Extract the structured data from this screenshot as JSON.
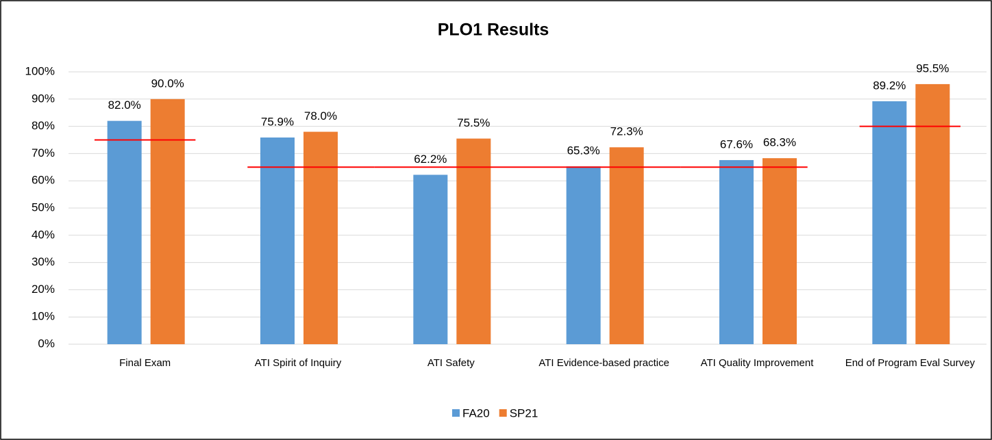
{
  "chart_data": {
    "type": "bar",
    "title": "PLO1 Results",
    "categories": [
      "Final Exam",
      "ATI Spirit of Inquiry",
      "ATI Safety",
      "ATI Evidence-based practice",
      "ATI Quality Improvement",
      "End of Program Eval Survey"
    ],
    "series": [
      {
        "name": "FA20",
        "color": "#5b9bd5",
        "values": [
          82.0,
          75.9,
          62.2,
          65.3,
          67.6,
          89.2
        ],
        "value_labels": [
          "82.0%",
          "75.9%",
          "62.2%",
          "65.3%",
          "67.6%",
          "89.2%"
        ]
      },
      {
        "name": "SP21",
        "color": "#ed7d31",
        "values": [
          90.0,
          78.0,
          75.5,
          72.3,
          68.3,
          95.5
        ],
        "value_labels": [
          "90.0%",
          "78.0%",
          "75.5%",
          "72.3%",
          "68.3%",
          "95.5%"
        ]
      }
    ],
    "targets": [
      75,
      65,
      65,
      65,
      65,
      80
    ],
    "target_color": "#ff0000",
    "ylim": [
      0,
      100
    ],
    "yticks": [
      {
        "value": 0,
        "label": "0%"
      },
      {
        "value": 10,
        "label": "10%"
      },
      {
        "value": 20,
        "label": "20%"
      },
      {
        "value": 30,
        "label": "30%"
      },
      {
        "value": 40,
        "label": "40%"
      },
      {
        "value": 50,
        "label": "50%"
      },
      {
        "value": 60,
        "label": "60%"
      },
      {
        "value": 70,
        "label": "70%"
      },
      {
        "value": 80,
        "label": "80%"
      },
      {
        "value": 90,
        "label": "90%"
      },
      {
        "value": 100,
        "label": "100%"
      }
    ],
    "grid": true,
    "legend": "bottom"
  }
}
